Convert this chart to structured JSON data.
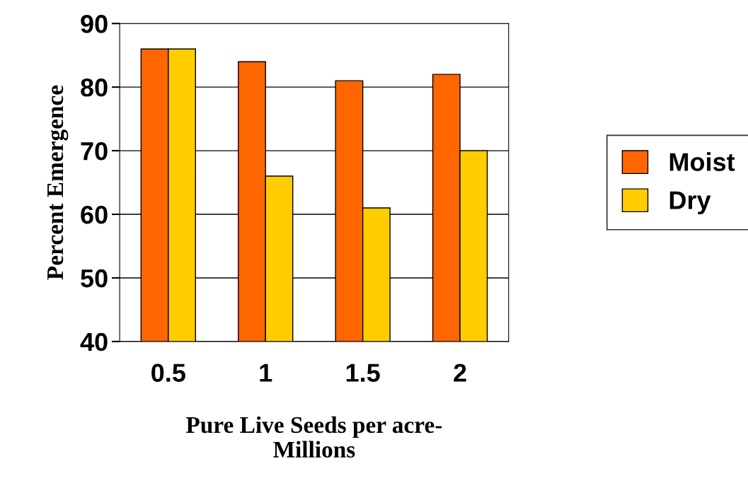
{
  "chart_data": {
    "type": "bar",
    "xlabel": "Pure Live Seeds per acre-\nMillions",
    "ylabel": "Percent Emergence",
    "categories": [
      "0.5",
      "1",
      "1.5",
      "2"
    ],
    "series": [
      {
        "name": "Moist",
        "color": "#ff6600",
        "values": [
          86,
          84,
          81,
          82
        ]
      },
      {
        "name": "Dry",
        "color": "#ffcc00",
        "values": [
          86,
          66,
          61,
          70
        ]
      }
    ],
    "ylim": [
      40,
      90
    ],
    "yticks": [
      40,
      50,
      60,
      70,
      80,
      90
    ],
    "grid": "y",
    "legend": "right"
  }
}
